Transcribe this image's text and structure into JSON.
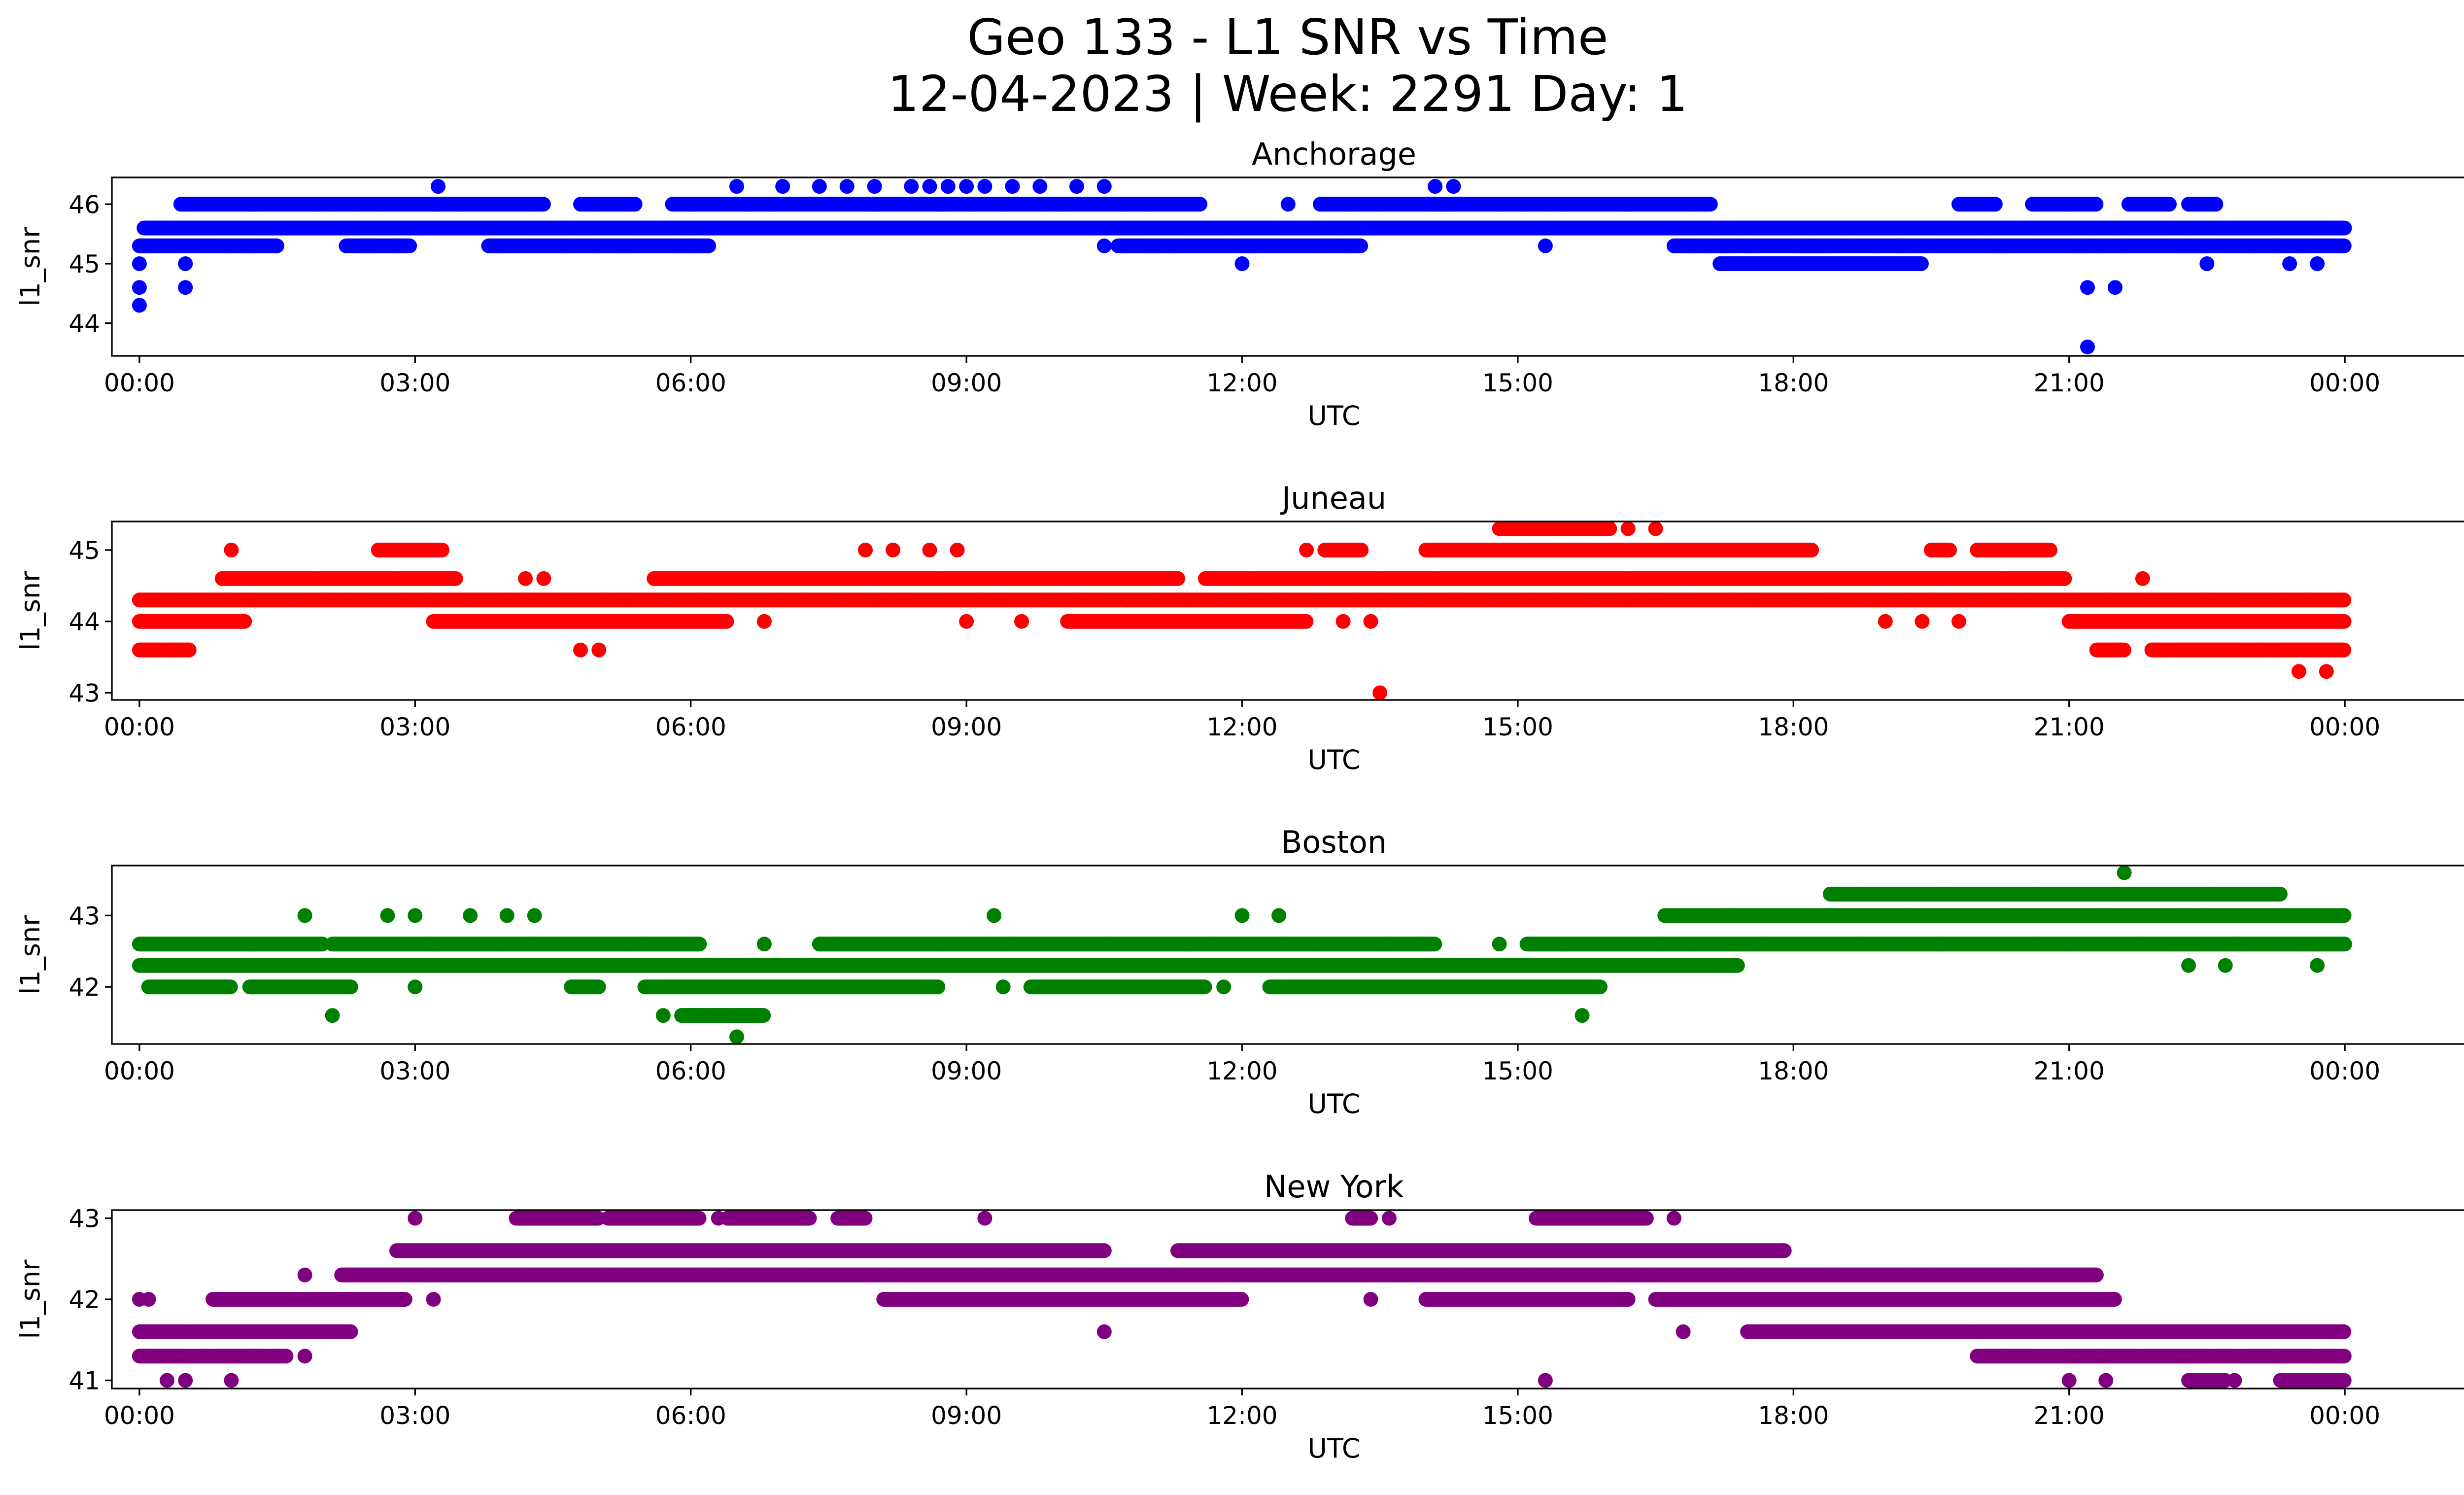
{
  "figure": {
    "title_line1": "Geo 133 - L1 SNR vs Time",
    "title_line2": "12-04-2023 | Week: 2291 Day: 1"
  },
  "chart_data": [
    {
      "type": "scatter",
      "title": "Anchorage",
      "xlabel": "UTC",
      "ylabel": "l1_snr",
      "color": "#0000ff",
      "xlim": [
        -0.3,
        26.3
      ],
      "ylim": [
        43.45,
        46.45
      ],
      "xticks": [
        0,
        3,
        6,
        9,
        12,
        15,
        18,
        21,
        24
      ],
      "xtick_labels": [
        "00:00",
        "03:00",
        "06:00",
        "09:00",
        "12:00",
        "15:00",
        "18:00",
        "21:00",
        "00:00"
      ],
      "yticks": [
        44,
        45,
        46
      ],
      "ytick_labels": [
        "44",
        "45",
        "46"
      ],
      "x_unit": "hours since 00:00 UTC",
      "bands": [
        {
          "y": 45.6,
          "segments": [
            [
              0.05,
              24.0
            ]
          ]
        },
        {
          "y": 45.3,
          "segments": [
            [
              0.0,
              1.5
            ],
            [
              2.25,
              2.5
            ],
            [
              2.5,
              2.95
            ],
            [
              3.8,
              4.6
            ],
            [
              4.6,
              6.2
            ],
            [
              10.65,
              13.3
            ],
            [
              16.7,
              24.0
            ]
          ]
        },
        {
          "y": 46.0,
          "segments": [
            [
              0.45,
              3.0
            ],
            [
              3.0,
              4.4
            ],
            [
              4.8,
              5.4
            ],
            [
              5.8,
              11.55
            ],
            [
              12.85,
              17.1
            ],
            [
              19.8,
              20.2
            ],
            [
              20.6,
              21.3
            ],
            [
              21.65,
              22.1
            ],
            [
              22.3,
              22.6
            ]
          ]
        },
        {
          "y": 45.0,
          "segments": [
            [
              17.2,
              17.5
            ],
            [
              17.5,
              19.4
            ]
          ]
        }
      ],
      "points": [
        [
          0.0,
          44.3
        ],
        [
          0.0,
          44.6
        ],
        [
          0.0,
          45.0
        ],
        [
          0.5,
          44.6
        ],
        [
          0.5,
          45.0
        ],
        [
          3.25,
          46.3
        ],
        [
          6.5,
          46.3
        ],
        [
          7.0,
          46.3
        ],
        [
          7.4,
          46.3
        ],
        [
          7.7,
          46.3
        ],
        [
          8.0,
          46.3
        ],
        [
          8.4,
          46.3
        ],
        [
          8.6,
          46.3
        ],
        [
          8.8,
          46.3
        ],
        [
          9.0,
          46.3
        ],
        [
          9.2,
          46.3
        ],
        [
          9.5,
          46.3
        ],
        [
          9.8,
          46.3
        ],
        [
          10.2,
          46.3
        ],
        [
          10.5,
          46.3
        ],
        [
          14.1,
          46.3
        ],
        [
          14.3,
          46.3
        ],
        [
          10.5,
          45.3
        ],
        [
          12.0,
          45.0
        ],
        [
          12.5,
          46.0
        ],
        [
          15.3,
          45.3
        ],
        [
          21.2,
          43.6
        ],
        [
          21.2,
          44.6
        ],
        [
          21.5,
          44.6
        ],
        [
          22.5,
          45.0
        ],
        [
          23.4,
          45.0
        ],
        [
          23.7,
          45.0
        ]
      ]
    },
    {
      "type": "scatter",
      "title": "Juneau",
      "xlabel": "UTC",
      "ylabel": "l1_snr",
      "color": "#ff0000",
      "xlim": [
        -0.3,
        26.3
      ],
      "ylim": [
        42.9,
        45.4
      ],
      "xticks": [
        0,
        3,
        6,
        9,
        12,
        15,
        18,
        21,
        24
      ],
      "xtick_labels": [
        "00:00",
        "03:00",
        "06:00",
        "09:00",
        "12:00",
        "15:00",
        "18:00",
        "21:00",
        "00:00"
      ],
      "yticks": [
        43,
        44,
        45
      ],
      "ytick_labels": [
        "43",
        "44",
        "45"
      ],
      "x_unit": "hours since 00:00 UTC",
      "bands": [
        {
          "y": 44.3,
          "segments": [
            [
              0.0,
              24.0
            ]
          ]
        },
        {
          "y": 44.0,
          "segments": [
            [
              0.0,
              1.15
            ],
            [
              3.2,
              6.4
            ],
            [
              10.1,
              12.7
            ],
            [
              21.0,
              24.0
            ]
          ]
        },
        {
          "y": 44.6,
          "segments": [
            [
              0.9,
              3.45
            ],
            [
              5.6,
              10.2
            ],
            [
              10.2,
              11.3
            ],
            [
              11.6,
              20.95
            ]
          ]
        },
        {
          "y": 45.0,
          "segments": [
            [
              2.6,
              3.3
            ],
            [
              12.9,
              13.3
            ],
            [
              14.0,
              17.9
            ],
            [
              17.9,
              18.2
            ],
            [
              19.5,
              19.7
            ],
            [
              20.0,
              20.8
            ]
          ]
        },
        {
          "y": 45.3,
          "segments": [
            [
              14.8,
              16.0
            ]
          ]
        },
        {
          "y": 43.6,
          "segments": [
            [
              0.0,
              0.2
            ],
            [
              0.2,
              0.55
            ],
            [
              21.3,
              21.6
            ],
            [
              21.9,
              24.0
            ]
          ]
        }
      ],
      "points": [
        [
          1.0,
          45.0
        ],
        [
          4.2,
          44.6
        ],
        [
          4.4,
          44.6
        ],
        [
          4.8,
          43.6
        ],
        [
          5.0,
          43.6
        ],
        [
          6.8,
          44.0
        ],
        [
          7.9,
          45.0
        ],
        [
          8.2,
          45.0
        ],
        [
          8.6,
          45.0
        ],
        [
          8.9,
          45.0
        ],
        [
          9.0,
          44.0
        ],
        [
          9.6,
          44.0
        ],
        [
          12.7,
          45.0
        ],
        [
          13.5,
          43.0
        ],
        [
          13.1,
          44.0
        ],
        [
          13.4,
          44.0
        ],
        [
          16.2,
          45.3
        ],
        [
          16.5,
          45.3
        ],
        [
          19.0,
          44.0
        ],
        [
          19.4,
          44.0
        ],
        [
          19.8,
          44.0
        ],
        [
          21.8,
          44.6
        ],
        [
          23.5,
          43.3
        ],
        [
          23.8,
          43.3
        ]
      ]
    },
    {
      "type": "scatter",
      "title": "Boston",
      "xlabel": "UTC",
      "ylabel": "l1_snr",
      "color": "#008000",
      "xlim": [
        -0.3,
        26.3
      ],
      "ylim": [
        41.2,
        43.7
      ],
      "xticks": [
        0,
        3,
        6,
        9,
        12,
        15,
        18,
        21,
        24
      ],
      "xtick_labels": [
        "00:00",
        "03:00",
        "06:00",
        "09:00",
        "12:00",
        "15:00",
        "18:00",
        "21:00",
        "00:00"
      ],
      "yticks": [
        42,
        43
      ],
      "ytick_labels": [
        "42",
        "43"
      ],
      "x_unit": "hours since 00:00 UTC",
      "bands": [
        {
          "y": 42.3,
          "segments": [
            [
              0.0,
              17.4
            ]
          ]
        },
        {
          "y": 42.6,
          "segments": [
            [
              0.0,
              2.0
            ],
            [
              2.1,
              5.5
            ],
            [
              5.5,
              6.1
            ],
            [
              7.4,
              13.6
            ],
            [
              13.6,
              14.1
            ],
            [
              15.1,
              24.0
            ]
          ]
        },
        {
          "y": 42.0,
          "segments": [
            [
              0.1,
              1.0
            ],
            [
              1.2,
              2.3
            ],
            [
              4.7,
              5.0
            ],
            [
              5.5,
              8.7
            ],
            [
              9.7,
              11.6
            ],
            [
              12.3,
              13.3
            ],
            [
              13.3,
              15.9
            ]
          ]
        },
        {
          "y": 43.0,
          "segments": [
            [
              16.6,
              24.0
            ]
          ]
        },
        {
          "y": 43.3,
          "segments": [
            [
              18.4,
              19.7
            ],
            [
              19.7,
              23.3
            ]
          ]
        },
        {
          "y": 41.6,
          "segments": [
            [
              5.9,
              6.8
            ]
          ]
        }
      ],
      "points": [
        [
          1.8,
          43.0
        ],
        [
          2.7,
          43.0
        ],
        [
          3.0,
          43.0
        ],
        [
          3.6,
          43.0
        ],
        [
          4.0,
          43.0
        ],
        [
          4.3,
          43.0
        ],
        [
          2.1,
          41.6
        ],
        [
          3.0,
          42.0
        ],
        [
          5.7,
          41.6
        ],
        [
          6.5,
          41.3
        ],
        [
          6.8,
          42.6
        ],
        [
          9.3,
          43.0
        ],
        [
          9.4,
          42.0
        ],
        [
          12.0,
          43.0
        ],
        [
          12.4,
          43.0
        ],
        [
          11.8,
          42.0
        ],
        [
          14.8,
          42.6
        ],
        [
          15.7,
          41.6
        ],
        [
          21.6,
          43.6
        ],
        [
          22.3,
          42.3
        ],
        [
          22.7,
          42.3
        ],
        [
          23.7,
          42.3
        ]
      ]
    },
    {
      "type": "scatter",
      "title": "New York",
      "xlabel": "UTC",
      "ylabel": "l1_snr",
      "color": "#800080",
      "xlim": [
        -0.3,
        26.3
      ],
      "ylim": [
        40.9,
        43.1
      ],
      "xticks": [
        0,
        3,
        6,
        9,
        12,
        15,
        18,
        21,
        24
      ],
      "xtick_labels": [
        "00:00",
        "03:00",
        "06:00",
        "09:00",
        "12:00",
        "15:00",
        "18:00",
        "21:00",
        "00:00"
      ],
      "yticks": [
        41,
        42,
        43
      ],
      "ytick_labels": [
        "41",
        "42",
        "43"
      ],
      "x_unit": "hours since 00:00 UTC",
      "bands": [
        {
          "y": 41.6,
          "segments": [
            [
              0.0,
              2.3
            ],
            [
              17.5,
              24.0
            ]
          ]
        },
        {
          "y": 41.3,
          "segments": [
            [
              0.0,
              1.6
            ],
            [
              20.0,
              24.0
            ]
          ]
        },
        {
          "y": 42.0,
          "segments": [
            [
              0.8,
              2.9
            ],
            [
              8.1,
              12.0
            ],
            [
              14.0,
              16.2
            ],
            [
              16.5,
              21.5
            ]
          ]
        },
        {
          "y": 42.3,
          "segments": [
            [
              2.2,
              21.3
            ]
          ]
        },
        {
          "y": 42.6,
          "segments": [
            [
              2.8,
              10.5
            ],
            [
              11.3,
              17.9
            ]
          ]
        },
        {
          "y": 43.0,
          "segments": [
            [
              4.1,
              5.0
            ],
            [
              5.1,
              6.1
            ],
            [
              6.4,
              7.3
            ],
            [
              7.6,
              7.9
            ],
            [
              13.2,
              13.4
            ],
            [
              15.2,
              16.4
            ]
          ]
        },
        {
          "y": 41.0,
          "segments": [
            [
              22.3,
              22.7
            ],
            [
              23.3,
              24.0
            ]
          ]
        }
      ],
      "points": [
        [
          0.0,
          42.0
        ],
        [
          0.1,
          42.0
        ],
        [
          0.3,
          41.0
        ],
        [
          0.5,
          41.0
        ],
        [
          1.0,
          41.0
        ],
        [
          1.8,
          41.3
        ],
        [
          1.8,
          42.3
        ],
        [
          3.0,
          43.0
        ],
        [
          3.2,
          42.0
        ],
        [
          5.6,
          43.0
        ],
        [
          6.3,
          43.0
        ],
        [
          9.2,
          43.0
        ],
        [
          10.5,
          41.6
        ],
        [
          11.2,
          42.3
        ],
        [
          13.4,
          42.0
        ],
        [
          13.6,
          43.0
        ],
        [
          15.3,
          41.0
        ],
        [
          16.7,
          43.0
        ],
        [
          16.8,
          41.6
        ],
        [
          21.0,
          41.0
        ],
        [
          21.2,
          42.3
        ],
        [
          21.4,
          41.0
        ],
        [
          22.8,
          41.0
        ]
      ]
    }
  ]
}
